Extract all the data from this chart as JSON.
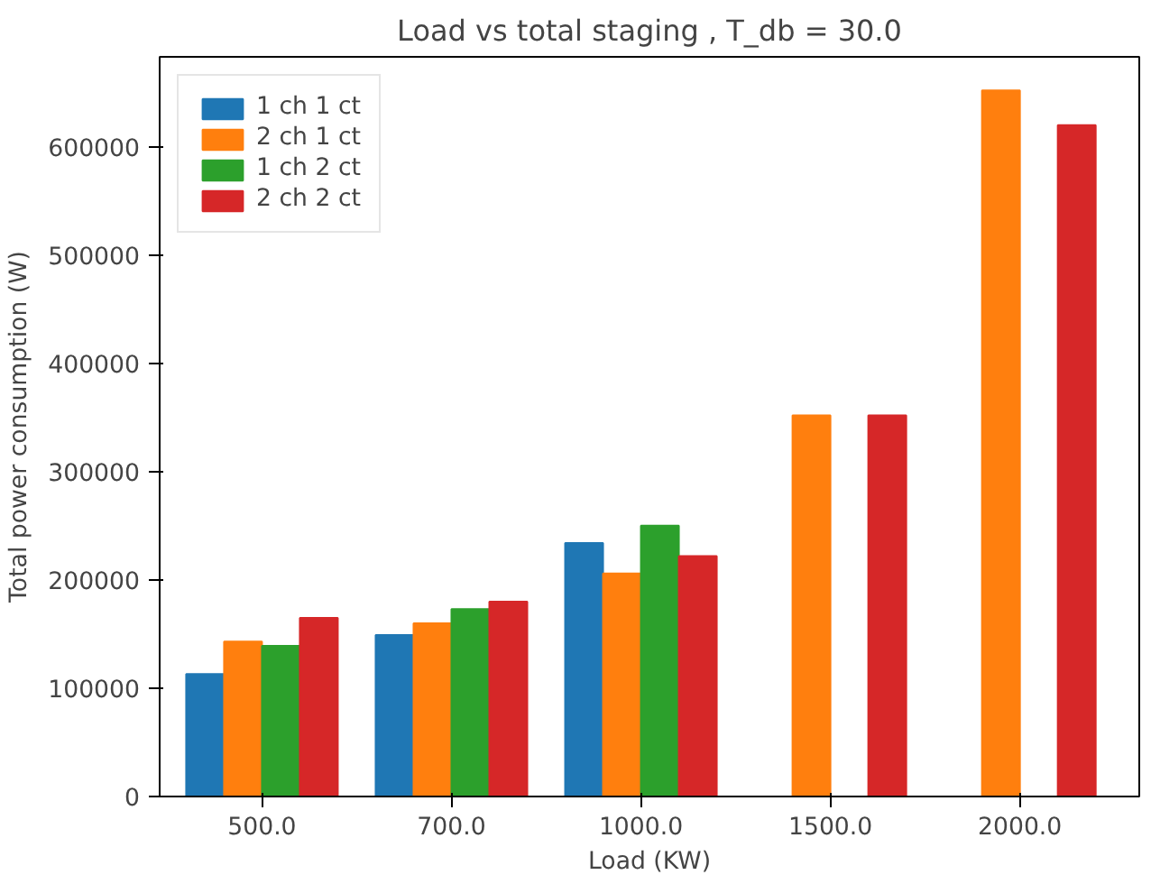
{
  "chart_data": {
    "type": "bar",
    "title": "Load vs total staging , T_db = 30.0",
    "xlabel": "Load (KW)",
    "ylabel": "Total power consumption (W)",
    "categories": [
      "500.0",
      "700.0",
      "1000.0",
      "1500.0",
      "2000.0"
    ],
    "series": [
      {
        "name": "1 ch 1 ct",
        "color": "#1f77b4",
        "values": [
          113000,
          149000,
          234000,
          null,
          null
        ]
      },
      {
        "name": "2 ch 1 ct",
        "color": "#ff7f0e",
        "values": [
          143000,
          160000,
          206000,
          352000,
          652000
        ]
      },
      {
        "name": "1 ch 2 ct",
        "color": "#2ca02c",
        "values": [
          139000,
          173000,
          250000,
          null,
          null
        ]
      },
      {
        "name": "2 ch 2 ct",
        "color": "#d62728",
        "values": [
          165000,
          180000,
          222000,
          352000,
          620000
        ]
      }
    ],
    "ylim": [
      0,
      683000
    ],
    "yticks": [
      0,
      100000,
      200000,
      300000,
      400000,
      500000,
      600000
    ],
    "grid": false,
    "legend": "top left"
  }
}
